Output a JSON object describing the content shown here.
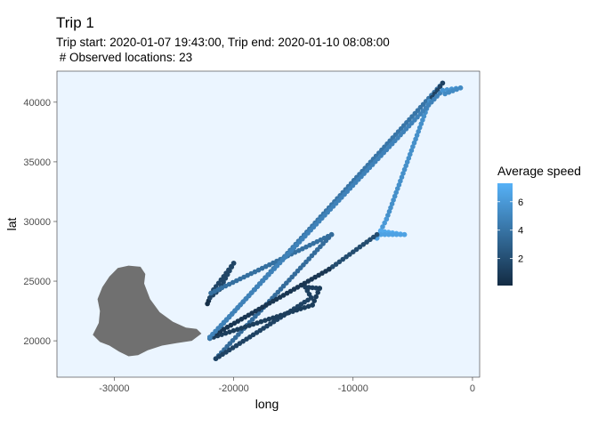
{
  "header": {
    "title": "Trip 1",
    "subtitle_line1": "Trip start: 2020-01-07 19:43:00, Trip end: 2020-01-10 08:08:00",
    "subtitle_line2": " # Observed locations: 23"
  },
  "colors": {
    "panel_bg": "#EBF5FF",
    "panel_border": "#333333",
    "land": "#707070",
    "speed_low": "#132B43",
    "speed_high": "#56B1F7"
  },
  "chart_data": {
    "type": "scatter",
    "xlabel": "long",
    "ylabel": "lat",
    "xlim": [
      -34800,
      600
    ],
    "ylim": [
      16950,
      42600
    ],
    "x_ticks": [
      -30000,
      -20000,
      -10000,
      0
    ],
    "x_tick_labels": [
      "-30000",
      "-20000",
      "-10000",
      "0"
    ],
    "y_ticks": [
      20000,
      25000,
      30000,
      35000,
      40000
    ],
    "y_tick_labels": [
      "20000",
      "25000",
      "30000",
      "35000",
      "40000"
    ],
    "grid": false,
    "color_scale": {
      "title": "Average speed",
      "min": 0.1,
      "max": 7.3,
      "ticks": [
        2,
        4,
        6
      ],
      "tick_labels": [
        "2",
        "4",
        "6"
      ]
    },
    "track_segments": [
      {
        "from": [
          -22200,
          23100
        ],
        "to": [
          -22000,
          23600
        ],
        "speed": 0.3
      },
      {
        "from": [
          -22000,
          23600
        ],
        "to": [
          -21200,
          24300
        ],
        "speed": 1.5
      },
      {
        "from": [
          -21200,
          24300
        ],
        "to": [
          -20000,
          26500
        ],
        "speed": 1.6
      },
      {
        "from": [
          -20000,
          26500
        ],
        "to": [
          -21900,
          24000
        ],
        "speed": 1.5
      },
      {
        "from": [
          -21900,
          24000
        ],
        "to": [
          -11800,
          28900
        ],
        "speed": 3.8
      },
      {
        "from": [
          -11800,
          28900
        ],
        "to": [
          -21500,
          18500
        ],
        "speed": 3.6
      },
      {
        "from": [
          -21500,
          18500
        ],
        "to": [
          -13500,
          23600
        ],
        "speed": 1.4
      },
      {
        "from": [
          -13500,
          23600
        ],
        "to": [
          -14000,
          24500
        ],
        "speed": 1.3
      },
      {
        "from": [
          -14000,
          24500
        ],
        "to": [
          -12800,
          24400
        ],
        "speed": 1.2
      },
      {
        "from": [
          -12800,
          24400
        ],
        "to": [
          -13400,
          23000
        ],
        "speed": 1.0
      },
      {
        "from": [
          -13400,
          23000
        ],
        "to": [
          -22000,
          20200
        ],
        "speed": 1.1
      },
      {
        "from": [
          -22000,
          20200
        ],
        "to": [
          -2500,
          41600
        ],
        "speed": 4.1
      },
      {
        "from": [
          -2500,
          41600
        ],
        "to": [
          -3600,
          40100
        ],
        "speed": 1.4
      },
      {
        "from": [
          -3600,
          40100
        ],
        "to": [
          -7200,
          30200
        ],
        "speed": 5.5
      },
      {
        "from": [
          -7200,
          30200
        ],
        "to": [
          -8000,
          28600
        ],
        "speed": 6.0
      },
      {
        "from": [
          -8000,
          28600
        ],
        "to": [
          -7700,
          29200
        ],
        "speed": 6.6
      },
      {
        "from": [
          -7700,
          29200
        ],
        "to": [
          -5700,
          28900
        ],
        "speed": 6.9
      },
      {
        "from": [
          -5700,
          28900
        ],
        "to": [
          -8000,
          28900
        ],
        "speed": 6.5
      },
      {
        "from": [
          -8000,
          28900
        ],
        "to": [
          -12000,
          26000
        ],
        "speed": 1.9
      },
      {
        "from": [
          -12000,
          26000
        ],
        "to": [
          -22000,
          20300
        ],
        "speed": 0.7
      },
      {
        "from": [
          -22000,
          20300
        ],
        "to": [
          -2500,
          41000
        ],
        "speed": 4.8
      },
      {
        "from": [
          -2500,
          41000
        ],
        "to": [
          -1000,
          41200
        ],
        "speed": 5.8
      },
      {
        "from": [
          -2300,
          40700
        ],
        "to": [
          -1000,
          41200
        ],
        "speed": 5.2
      }
    ],
    "island_outline": [
      [
        -31800,
        20500
      ],
      [
        -31300,
        21500
      ],
      [
        -31200,
        22500
      ],
      [
        -31400,
        23500
      ],
      [
        -31000,
        24500
      ],
      [
        -30400,
        25400
      ],
      [
        -29700,
        26100
      ],
      [
        -28800,
        26300
      ],
      [
        -27800,
        26200
      ],
      [
        -27400,
        25600
      ],
      [
        -27500,
        24800
      ],
      [
        -27000,
        23500
      ],
      [
        -26200,
        22400
      ],
      [
        -25100,
        21600
      ],
      [
        -24000,
        21100
      ],
      [
        -23100,
        21000
      ],
      [
        -22700,
        20600
      ],
      [
        -23500,
        20000
      ],
      [
        -24800,
        19800
      ],
      [
        -26000,
        19600
      ],
      [
        -27200,
        19200
      ],
      [
        -28000,
        18800
      ],
      [
        -28800,
        18700
      ],
      [
        -29600,
        19100
      ],
      [
        -30400,
        19600
      ],
      [
        -31200,
        19900
      ]
    ]
  }
}
